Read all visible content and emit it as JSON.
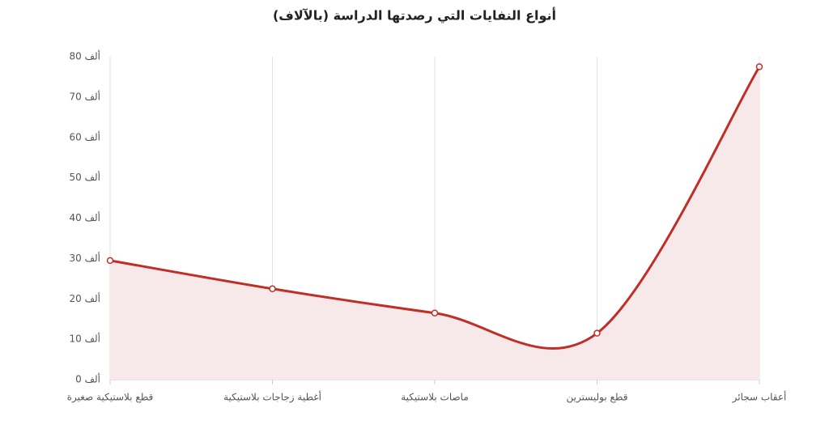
{
  "chart_data": {
    "type": "line",
    "title": "أنواع النفايات التي رصدتها الدراسة (بالآلاف)",
    "categories": [
      "قطع بلاستيكية صغيرة",
      "أغطية زجاجات بلاستيكية",
      "ماصات بلاستيكية",
      "قطع بوليسترين",
      "أعقاب سجائر"
    ],
    "values": [
      29.5,
      22.5,
      16.5,
      11.5,
      77.5
    ],
    "color": "#bf2f28",
    "area_color": "#f7e9e9",
    "ylim": [
      0,
      80
    ],
    "yticks": [
      {
        "value": 0,
        "label": "0 ألف"
      },
      {
        "value": 10,
        "label": "10 ألف"
      },
      {
        "value": 20,
        "label": "20 ألف"
      },
      {
        "value": 30,
        "label": "30 ألف"
      },
      {
        "value": 40,
        "label": "40 ألف"
      },
      {
        "value": 50,
        "label": "50 ألف"
      },
      {
        "value": 60,
        "label": "60 ألف"
      },
      {
        "value": 70,
        "label": "70 ألف"
      },
      {
        "value": 80,
        "label": "80 ألف"
      }
    ],
    "grid": true
  }
}
